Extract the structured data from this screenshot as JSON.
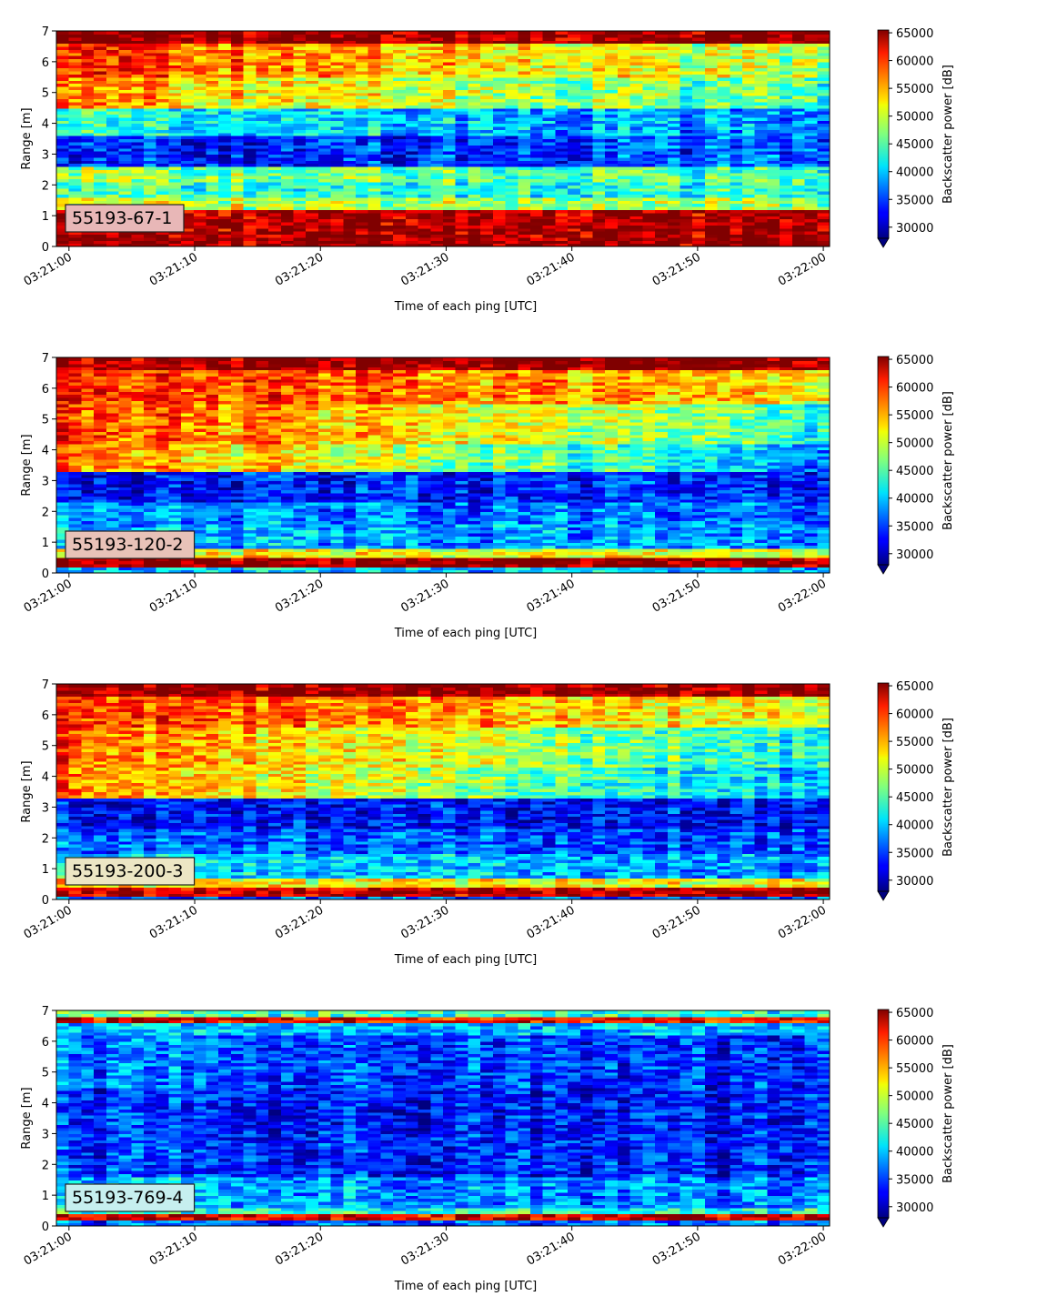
{
  "chart_data": [
    {
      "type": "heatmap",
      "title": "",
      "label_box": "55193-67-1",
      "label_box_color": "#e8b7b7",
      "xlabel": "Time of each ping [UTC]",
      "ylabel": "Range [m]",
      "xticks": [
        "03:21:00",
        "03:21:10",
        "03:21:20",
        "03:21:30",
        "03:21:40",
        "03:21:50",
        "03:22:00"
      ],
      "xlim_seconds": [
        -1,
        60.5
      ],
      "yticks": [
        0,
        1,
        2,
        3,
        4,
        5,
        6,
        7
      ],
      "ylim": [
        0,
        7
      ],
      "colorbar_label": "Backscatter power [dB]",
      "colorbar_ticks": [
        30000,
        35000,
        40000,
        45000,
        50000,
        55000,
        60000,
        65000
      ],
      "colorbar_range": [
        28000,
        65500
      ],
      "colormap": "jet",
      "colorbar_extend": "min",
      "profile": [
        {
          "range": [
            0.0,
            0.25
          ],
          "start": 65000,
          "end": 65000
        },
        {
          "range": [
            0.25,
            1.2
          ],
          "start": 64000,
          "end": 64000
        },
        {
          "range": [
            1.2,
            1.6
          ],
          "start": 50000,
          "end": 47000
        },
        {
          "range": [
            1.6,
            2.1
          ],
          "start": 44000,
          "end": 43000
        },
        {
          "range": [
            2.1,
            2.6
          ],
          "start": 47000,
          "end": 44000
        },
        {
          "range": [
            2.6,
            3.6
          ],
          "start": 33000,
          "end": 36000
        },
        {
          "range": [
            3.6,
            4.5
          ],
          "start": 43000,
          "end": 37000
        },
        {
          "range": [
            4.5,
            5.5
          ],
          "start": 55000,
          "end": 44000
        },
        {
          "range": [
            5.5,
            6.6
          ],
          "start": 59000,
          "end": 48000
        },
        {
          "range": [
            6.6,
            7.0
          ],
          "start": 65000,
          "end": 65000
        }
      ]
    },
    {
      "type": "heatmap",
      "title": "",
      "label_box": "55193-120-2",
      "label_box_color": "#e8c2b8",
      "xlabel": "Time of each ping [UTC]",
      "ylabel": "Range [m]",
      "xticks": [
        "03:21:00",
        "03:21:10",
        "03:21:20",
        "03:21:30",
        "03:21:40",
        "03:21:50",
        "03:22:00"
      ],
      "xlim_seconds": [
        -1,
        60.5
      ],
      "yticks": [
        0,
        1,
        2,
        3,
        4,
        5,
        6,
        7
      ],
      "ylim": [
        0,
        7
      ],
      "colorbar_label": "Backscatter power [dB]",
      "colorbar_ticks": [
        30000,
        35000,
        40000,
        45000,
        50000,
        55000,
        60000,
        65000
      ],
      "colorbar_range": [
        28000,
        65500
      ],
      "colormap": "jet",
      "colorbar_extend": "min",
      "profile": [
        {
          "range": [
            0.0,
            0.15
          ],
          "start": 40000,
          "end": 40000
        },
        {
          "range": [
            0.15,
            0.5
          ],
          "start": 65000,
          "end": 65000
        },
        {
          "range": [
            0.5,
            0.8
          ],
          "start": 52000,
          "end": 50000
        },
        {
          "range": [
            0.8,
            1.6
          ],
          "start": 40000,
          "end": 37000
        },
        {
          "range": [
            1.6,
            2.3
          ],
          "start": 38000,
          "end": 36000
        },
        {
          "range": [
            2.3,
            3.3
          ],
          "start": 33000,
          "end": 34000
        },
        {
          "range": [
            3.3,
            4.2
          ],
          "start": 57000,
          "end": 38000
        },
        {
          "range": [
            4.2,
            5.5
          ],
          "start": 59000,
          "end": 44000
        },
        {
          "range": [
            5.5,
            6.6
          ],
          "start": 60000,
          "end": 52000
        },
        {
          "range": [
            6.6,
            7.0
          ],
          "start": 65000,
          "end": 65000
        }
      ]
    },
    {
      "type": "heatmap",
      "title": "",
      "label_box": "55193-200-3",
      "label_box_color": "#ece6c4",
      "xlabel": "Time of each ping [UTC]",
      "ylabel": "Range [m]",
      "xticks": [
        "03:21:00",
        "03:21:10",
        "03:21:20",
        "03:21:30",
        "03:21:40",
        "03:21:50",
        "03:22:00"
      ],
      "xlim_seconds": [
        -1,
        60.5
      ],
      "yticks": [
        0,
        1,
        2,
        3,
        4,
        5,
        6,
        7
      ],
      "ylim": [
        0,
        7
      ],
      "colorbar_label": "Backscatter power [dB]",
      "colorbar_ticks": [
        30000,
        35000,
        40000,
        45000,
        50000,
        55000,
        60000,
        65000
      ],
      "colorbar_range": [
        28000,
        65500
      ],
      "colormap": "jet",
      "colorbar_extend": "min",
      "profile": [
        {
          "range": [
            0.0,
            0.1
          ],
          "start": 36000,
          "end": 36000
        },
        {
          "range": [
            0.1,
            0.35
          ],
          "start": 63000,
          "end": 63000
        },
        {
          "range": [
            0.35,
            0.7
          ],
          "start": 53000,
          "end": 50000
        },
        {
          "range": [
            0.7,
            1.5
          ],
          "start": 42000,
          "end": 38000
        },
        {
          "range": [
            1.5,
            2.3
          ],
          "start": 37000,
          "end": 35000
        },
        {
          "range": [
            2.3,
            3.3
          ],
          "start": 33000,
          "end": 33000
        },
        {
          "range": [
            3.3,
            4.3
          ],
          "start": 57000,
          "end": 39000
        },
        {
          "range": [
            4.3,
            5.6
          ],
          "start": 58000,
          "end": 42000
        },
        {
          "range": [
            5.6,
            6.6
          ],
          "start": 60000,
          "end": 50000
        },
        {
          "range": [
            6.6,
            7.0
          ],
          "start": 65000,
          "end": 65000
        }
      ]
    },
    {
      "type": "heatmap",
      "title": "",
      "label_box": "55193-769-4",
      "label_box_color": "#c6efef",
      "xlabel": "Time of each ping [UTC]",
      "ylabel": "Range [m]",
      "xticks": [
        "03:21:00",
        "03:21:10",
        "03:21:20",
        "03:21:30",
        "03:21:40",
        "03:21:50",
        "03:22:00"
      ],
      "xlim_seconds": [
        -1,
        60.5
      ],
      "yticks": [
        0,
        1,
        2,
        3,
        4,
        5,
        6,
        7
      ],
      "ylim": [
        0,
        7
      ],
      "colorbar_label": "Backscatter power [dB]",
      "colorbar_ticks": [
        30000,
        35000,
        40000,
        45000,
        50000,
        55000,
        60000,
        65000
      ],
      "colorbar_range": [
        28000,
        65500
      ],
      "colormap": "jet",
      "colorbar_extend": "min",
      "profile": [
        {
          "range": [
            0.0,
            0.15
          ],
          "start": 36000,
          "end": 36000
        },
        {
          "range": [
            0.15,
            0.35
          ],
          "start": 62000,
          "end": 62000
        },
        {
          "range": [
            0.35,
            0.6
          ],
          "start": 44000,
          "end": 42000
        },
        {
          "range": [
            0.6,
            1.6
          ],
          "start": 40000,
          "end": 36000
        },
        {
          "range": [
            1.6,
            3.0
          ],
          "start": 35000,
          "end": 33000
        },
        {
          "range": [
            3.0,
            4.5
          ],
          "start": 34000,
          "end": 32500
        },
        {
          "range": [
            4.5,
            6.2
          ],
          "start": 37000,
          "end": 33000
        },
        {
          "range": [
            6.2,
            6.6
          ],
          "start": 40000,
          "end": 39000
        },
        {
          "range": [
            6.6,
            6.8
          ],
          "start": 62000,
          "end": 60000
        },
        {
          "range": [
            6.8,
            7.0
          ],
          "start": 46000,
          "end": 42000
        }
      ]
    }
  ]
}
